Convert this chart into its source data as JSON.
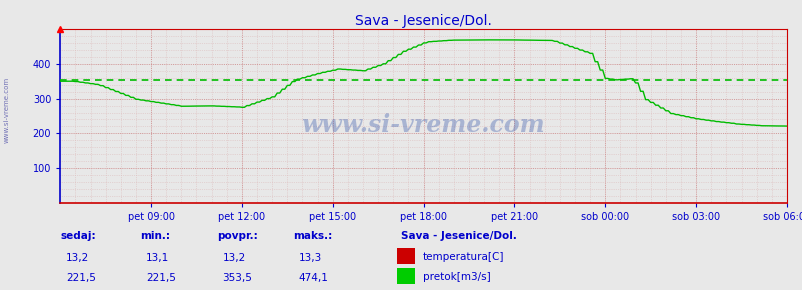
{
  "title": "Sava - Jesenice/Dol.",
  "bg_color": "#e8e8e8",
  "plot_bg_color": "#e8e8e8",
  "grid_color_major": "#cc8888",
  "grid_color_minor": "#ddbbbb",
  "line_color": "#00bb00",
  "avg_line_color": "#00bb00",
  "avg_value": 353.5,
  "x_tick_labels": [
    "pet 09:00",
    "pet 12:00",
    "pet 15:00",
    "pet 18:00",
    "pet 21:00",
    "sob 00:00",
    "sob 03:00",
    "sob 06:00"
  ],
  "y_ticks": [
    100,
    200,
    300,
    400
  ],
  "ylim": [
    0,
    500
  ],
  "xlim": [
    0,
    288
  ],
  "x_tick_positions": [
    36,
    72,
    108,
    144,
    180,
    216,
    252,
    288
  ],
  "watermark": "www.si-vreme.com",
  "title_color": "#0000cc",
  "axis_color": "#0000cc",
  "tick_color": "#0000cc",
  "stats_labels": [
    "sedaj:",
    "min.:",
    "povpr.:",
    "maks.:"
  ],
  "stats_temp": [
    "13,2",
    "13,1",
    "13,2",
    "13,3"
  ],
  "stats_flow": [
    "221,5",
    "221,5",
    "353,5",
    "474,1"
  ],
  "legend_title": "Sava - Jesenice/Dol.",
  "legend_items": [
    "temperatura[C]",
    "pretok[m3/s]"
  ],
  "legend_colors": [
    "#cc0000",
    "#00cc00"
  ],
  "side_label": "www.si-vreme.com",
  "spine_left_color": "#0000cc",
  "spine_bottom_color": "#cc0000",
  "spine_top_color": "#cc0000",
  "spine_right_color": "#cc0000"
}
